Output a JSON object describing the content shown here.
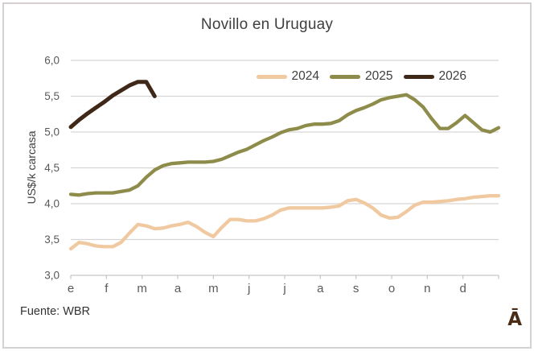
{
  "title": "Novillo en Uruguay",
  "y_axis_title": "US$/k carcasa",
  "source": "Fuente: WBR",
  "logo": "Ā",
  "colors": {
    "series_2024": "#F0C9A0",
    "series_2025": "#8E8C4B",
    "series_2026": "#3F2817",
    "gridline": "#d9d5d5",
    "text": "#3f3f3f",
    "tick_text": "#595959",
    "logo": "#4a2b15"
  },
  "chart_data": {
    "type": "line",
    "title": "Novillo en Uruguay",
    "ylabel": "US$/k carcasa",
    "ylim": [
      3.0,
      6.0
    ],
    "yticks": [
      6.0,
      5.5,
      5.0,
      4.5,
      4.0,
      3.5,
      3.0
    ],
    "ytick_labels": [
      "6,0",
      "5,5",
      "5,0",
      "4,5",
      "4,0",
      "3,5",
      "3,0"
    ],
    "x_tick_labels": [
      "e",
      "f",
      "m",
      "a",
      "m",
      "j",
      "j",
      "a",
      "s",
      "o",
      "n",
      "d"
    ],
    "x_unit": "weekly prices, Jan-Dec",
    "grid": true,
    "legend_position": "top-inside",
    "series": [
      {
        "name": "2024",
        "color": "#F0C9A0",
        "values": [
          3.37,
          3.46,
          3.44,
          3.41,
          3.4,
          3.4,
          3.46,
          3.59,
          3.71,
          3.69,
          3.65,
          3.66,
          3.69,
          3.71,
          3.74,
          3.68,
          3.6,
          3.54,
          3.67,
          3.78,
          3.78,
          3.76,
          3.76,
          3.79,
          3.84,
          3.91,
          3.94,
          3.94,
          3.94,
          3.94,
          3.94,
          3.95,
          3.97,
          4.04,
          4.06,
          4.01,
          3.94,
          3.84,
          3.8,
          3.81,
          3.89,
          3.98,
          4.02,
          4.02,
          4.03,
          4.04,
          4.06,
          4.07,
          4.09,
          4.1,
          4.11,
          4.11
        ]
      },
      {
        "name": "2025",
        "color": "#8E8C4B",
        "values": [
          4.13,
          4.12,
          4.14,
          4.15,
          4.15,
          4.15,
          4.17,
          4.19,
          4.25,
          4.37,
          4.47,
          4.53,
          4.56,
          4.57,
          4.58,
          4.58,
          4.58,
          4.59,
          4.62,
          4.67,
          4.72,
          4.76,
          4.82,
          4.88,
          4.93,
          4.99,
          5.03,
          5.05,
          5.09,
          5.11,
          5.11,
          5.12,
          5.16,
          5.24,
          5.3,
          5.34,
          5.39,
          5.45,
          5.48,
          5.5,
          5.52,
          5.45,
          5.35,
          5.19,
          5.05,
          5.05,
          5.13,
          5.23,
          5.13,
          5.03,
          5.0,
          5.06
        ]
      },
      {
        "name": "2026",
        "color": "#3F2817",
        "values": [
          5.07,
          5.17,
          5.26,
          5.34,
          5.42,
          5.51,
          5.58,
          5.65,
          5.7,
          5.7,
          5.5
        ]
      }
    ]
  }
}
